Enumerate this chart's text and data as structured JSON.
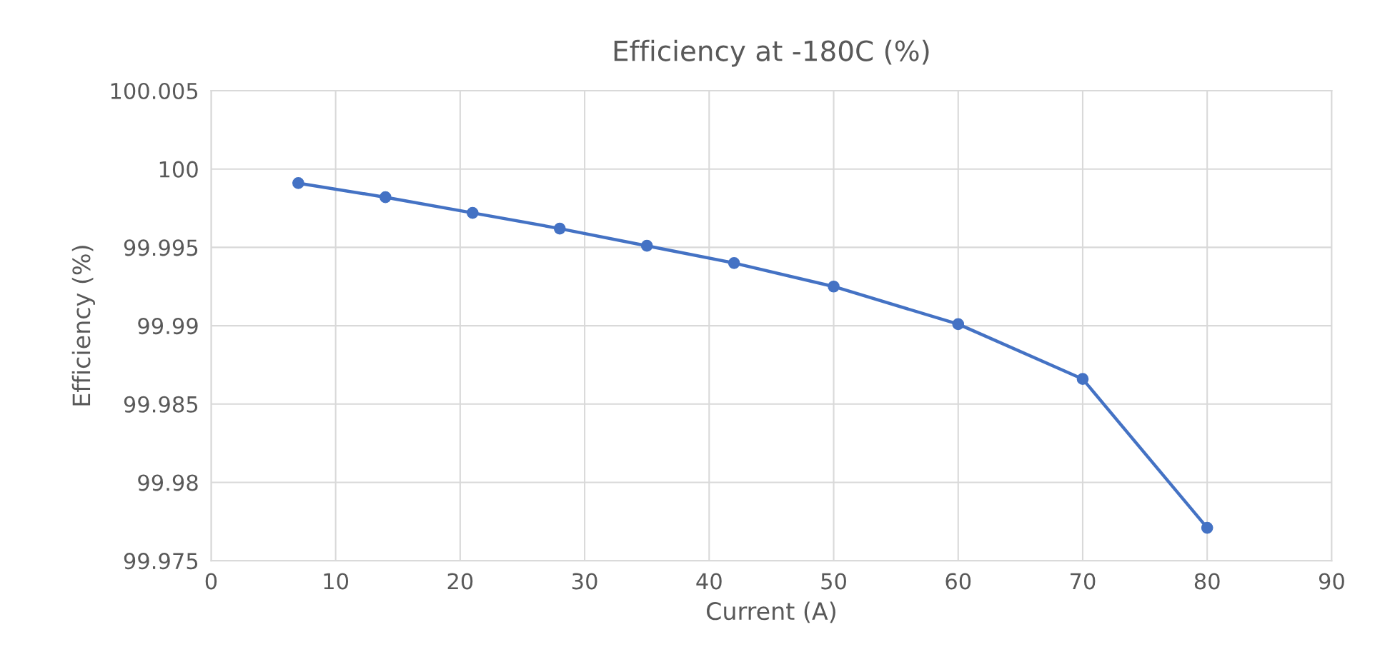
{
  "chart_data": {
    "type": "line",
    "title": "Efficiency at -180C (%)",
    "xlabel": "Current (A)",
    "ylabel": "Efficiency (%)",
    "x": [
      7,
      14,
      21,
      28,
      35,
      42,
      50,
      60,
      70,
      80
    ],
    "series": [
      {
        "color": "#4472c4",
        "values": [
          99.9991,
          99.9982,
          99.9972,
          99.9962,
          99.9951,
          99.994,
          99.9925,
          99.9901,
          99.9866,
          99.9771
        ]
      }
    ],
    "xlim": [
      0,
      90
    ],
    "xticks": [
      0,
      10,
      20,
      30,
      40,
      50,
      60,
      70,
      80,
      90
    ],
    "ylim": [
      99.975,
      100.005
    ],
    "yticks": [
      99.975,
      99.98,
      99.985,
      99.99,
      99.995,
      100,
      100.005
    ],
    "grid": true,
    "marker": "circle",
    "line_style": "solid"
  }
}
